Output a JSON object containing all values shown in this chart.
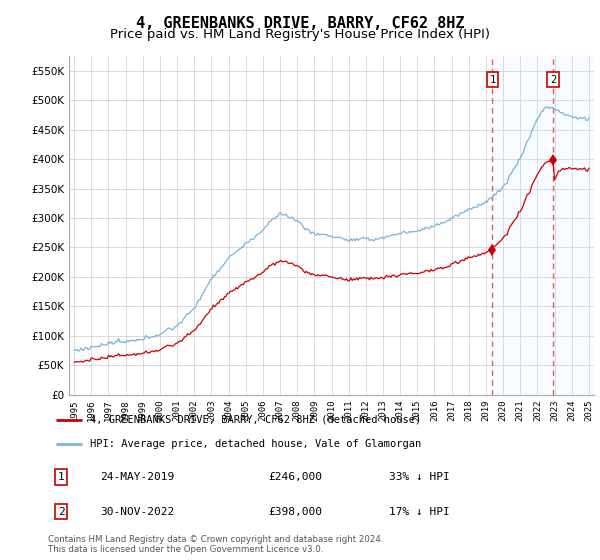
{
  "title": "4, GREENBANKS DRIVE, BARRY, CF62 8HZ",
  "subtitle": "Price paid vs. HM Land Registry's House Price Index (HPI)",
  "ylim": [
    0,
    575000
  ],
  "yticks": [
    0,
    50000,
    100000,
    150000,
    200000,
    250000,
    300000,
    350000,
    400000,
    450000,
    500000,
    550000
  ],
  "ytick_labels": [
    "£0",
    "£50K",
    "£100K",
    "£150K",
    "£200K",
    "£250K",
    "£300K",
    "£350K",
    "£400K",
    "£450K",
    "£500K",
    "£550K"
  ],
  "hpi_color": "#7ab4d8",
  "price_color": "#cc0000",
  "vline_color": "#e06060",
  "shade_color": "#ddeeff",
  "transaction1_year": 2019.38,
  "transaction1_price": 246000,
  "transaction2_year": 2022.92,
  "transaction2_price": 398000,
  "legend_line1": "4, GREENBANKS DRIVE, BARRY, CF62 8HZ (detached house)",
  "legend_line2": "HPI: Average price, detached house, Vale of Glamorgan",
  "table_row1": [
    "1",
    "24-MAY-2019",
    "£246,000",
    "33% ↓ HPI"
  ],
  "table_row2": [
    "2",
    "30-NOV-2022",
    "£398,000",
    "17% ↓ HPI"
  ],
  "footnote": "Contains HM Land Registry data © Crown copyright and database right 2024.\nThis data is licensed under the Open Government Licence v3.0.",
  "title_fontsize": 11,
  "subtitle_fontsize": 9.5,
  "background_color": "#ffffff",
  "grid_color": "#cccccc"
}
